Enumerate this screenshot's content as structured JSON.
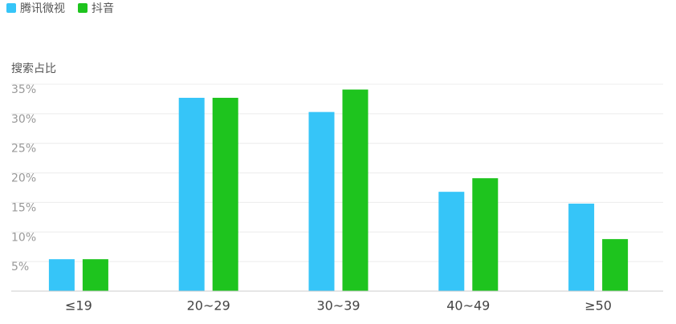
{
  "chart_data": {
    "type": "bar",
    "y_axis_label": "搜索占比",
    "categories": [
      "≤19",
      "20~29",
      "30~39",
      "40~49",
      "≥50"
    ],
    "series": [
      {
        "name": "腾讯微视",
        "color": "#36c5f8",
        "values": [
          5.4,
          32.7,
          30.3,
          16.8,
          14.8
        ]
      },
      {
        "name": "抖音",
        "color": "#1ec41e",
        "values": [
          5.4,
          32.7,
          34.1,
          19.1,
          8.8
        ]
      }
    ],
    "ylim": [
      0,
      35
    ],
    "yticks": [
      {
        "value": 5,
        "label": "5%"
      },
      {
        "value": 10,
        "label": "10%"
      },
      {
        "value": 15,
        "label": "15%"
      },
      {
        "value": 20,
        "label": "20%"
      },
      {
        "value": 25,
        "label": "25%"
      },
      {
        "value": 30,
        "label": "30%"
      },
      {
        "value": 35,
        "label": "35%"
      }
    ],
    "grid": true,
    "legend": "top-left"
  }
}
